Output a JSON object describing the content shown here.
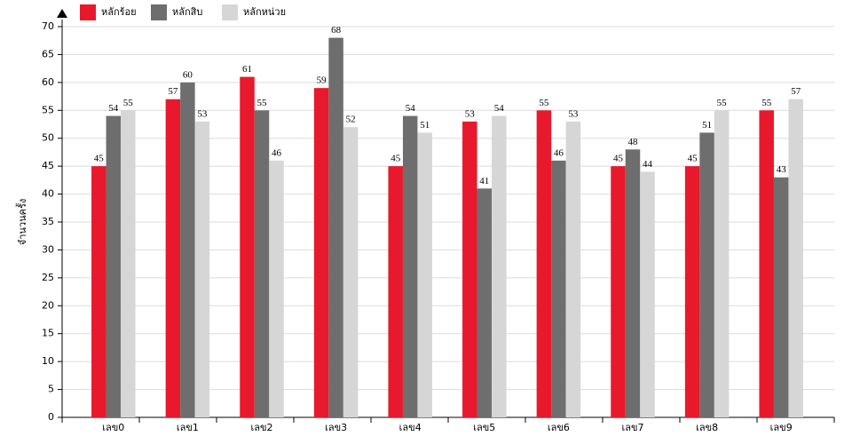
{
  "chart_data": {
    "type": "bar",
    "y_label": "จำนวนครั้ง",
    "categories": [
      "เลข0",
      "เลข1",
      "เลข2",
      "เลข3",
      "เลข4",
      "เลข5",
      "เลข6",
      "เลข7",
      "เลข8",
      "เลข9"
    ],
    "series": [
      {
        "name": "หลักร้อย",
        "color": "#e8192c",
        "values": [
          45,
          57,
          61,
          59,
          45,
          53,
          55,
          45,
          45,
          55
        ]
      },
      {
        "name": "หลักสิบ",
        "color": "#6e6e6e",
        "values": [
          54,
          60,
          55,
          68,
          54,
          41,
          46,
          48,
          51,
          43
        ]
      },
      {
        "name": "หลักหน่วย",
        "color": "#d6d6d6",
        "values": [
          55,
          53,
          46,
          52,
          51,
          54,
          53,
          44,
          55,
          57
        ]
      }
    ],
    "ylim": [
      0,
      70
    ],
    "yticks": [
      0,
      5,
      10,
      15,
      20,
      25,
      30,
      35,
      40,
      45,
      50,
      55,
      60,
      65,
      70
    ],
    "grid": true,
    "legend": "top-left"
  }
}
